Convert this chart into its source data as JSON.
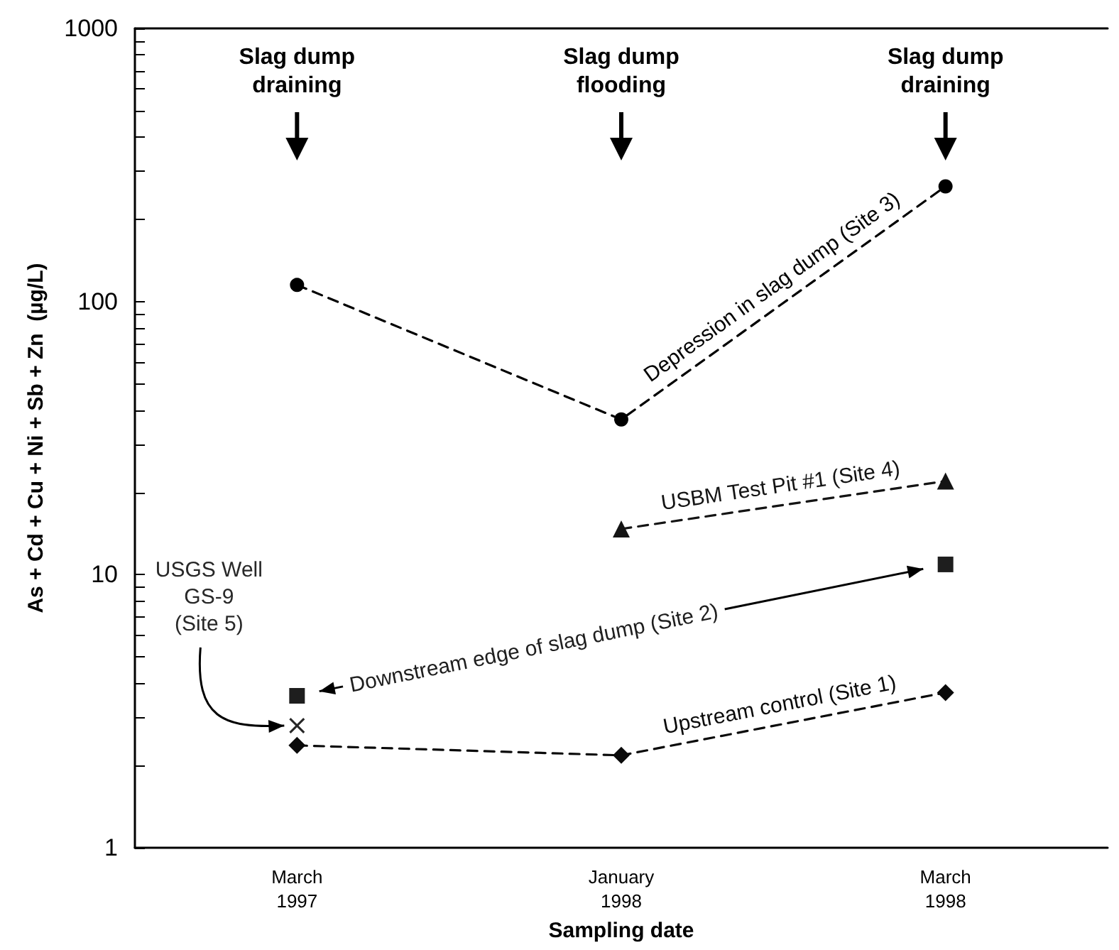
{
  "chart_data": {
    "type": "line",
    "xlabel": "Sampling date",
    "ylabel": "As + Cd + Cu + Ni + Sb + Zn  (µg/L)",
    "categories": [
      "March 1997",
      "January 1998",
      "March 1998"
    ],
    "series": [
      {
        "name": "Depression in slag dump (Site 3)",
        "color": "#000000",
        "marker": "circle",
        "line_style": "dashed",
        "values": [
          115,
          37,
          264
        ]
      },
      {
        "name": "USBM Test Pit #1 (Site 4)",
        "color": "#141414",
        "marker": "triangle",
        "line_style": "dashed",
        "values": [
          null,
          14.7,
          22
        ]
      },
      {
        "name": "Upstream control (Site 1)",
        "color": "#0a0a0a",
        "marker": "diamond",
        "line_style": "dashed",
        "values": [
          2.37,
          2.18,
          3.7
        ]
      },
      {
        "name": "Downstream edge of slag dump (Site 2)",
        "type": "scatter",
        "color": "#1e1e1e",
        "marker": "square",
        "values": [
          3.6,
          null,
          10.9
        ]
      },
      {
        "name": "USGS Well GS-9 (Site 5)",
        "type": "scatter",
        "color": "#282828",
        "marker": "cross",
        "values": [
          2.8,
          null,
          null
        ]
      }
    ],
    "log": "y",
    "ylim": [
      1,
      1000
    ],
    "yticks": [
      1,
      {
        "value": 2,
        "label": null
      },
      {
        "value": 3,
        "label": null
      },
      {
        "value": 4,
        "label": null
      },
      {
        "value": 5,
        "label": null
      },
      {
        "value": 6,
        "label": null
      },
      {
        "value": 7,
        "label": null
      },
      {
        "value": 8,
        "label": null
      },
      {
        "value": 9,
        "label": null
      },
      10,
      {
        "value": 20,
        "label": null
      },
      {
        "value": 30,
        "label": null
      },
      {
        "value": 40,
        "label": null
      },
      {
        "value": 50,
        "label": null
      },
      {
        "value": 60,
        "label": null
      },
      {
        "value": 70,
        "label": null
      },
      {
        "value": 80,
        "label": null
      },
      {
        "value": 90,
        "label": null
      },
      100,
      {
        "value": 200,
        "label": null
      },
      {
        "value": 300,
        "label": null
      },
      {
        "value": 400,
        "label": null
      },
      {
        "value": 500,
        "label": null
      },
      {
        "value": 600,
        "label": null
      },
      {
        "value": 700,
        "label": null
      },
      {
        "value": 800,
        "label": null
      },
      {
        "value": 900,
        "label": null
      },
      1000
    ],
    "grid": false,
    "legend": false,
    "annotations": [
      {
        "text": "Slag dump draining",
        "x": "March 1997"
      },
      {
        "text": "Slag dump flooding",
        "x": "January 1998"
      },
      {
        "text": "Slag dump draining",
        "x": "March 1998"
      }
    ]
  }
}
